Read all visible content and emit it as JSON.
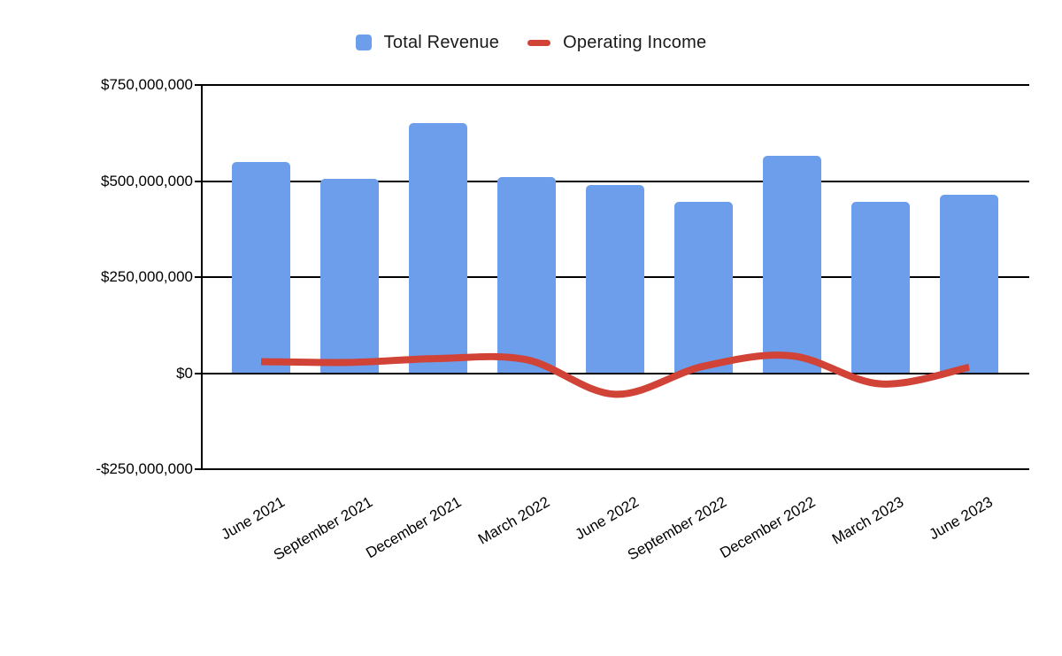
{
  "legend": [
    {
      "label": "Total Revenue",
      "swatch": "blue-square-swatch",
      "color": "#6d9eeb"
    },
    {
      "label": "Operating Income",
      "swatch": "red-dash-swatch",
      "color": "#d04336"
    }
  ],
  "chart_data": {
    "type": "bar",
    "subtype": "combo-bar-line",
    "categories": [
      "June 2021",
      "September 2021",
      "December 2021",
      "March 2022",
      "June 2022",
      "September 2022",
      "December 2022",
      "March 2023",
      "June 2023"
    ],
    "series": [
      {
        "name": "Total Revenue",
        "type": "bar",
        "color": "#6d9eeb",
        "values": [
          550000000,
          505000000,
          650000000,
          510000000,
          490000000,
          445000000,
          565000000,
          445000000,
          465000000
        ]
      },
      {
        "name": "Operating Income",
        "type": "line",
        "smooth": true,
        "color": "#d04336",
        "values": [
          30000000,
          28000000,
          38000000,
          35000000,
          -55000000,
          18000000,
          45000000,
          -28000000,
          15000000
        ]
      }
    ],
    "title": "",
    "xlabel": "",
    "ylabel": "",
    "ylim": [
      -250000000,
      750000000
    ],
    "yticks": [
      {
        "value": 750000000,
        "label": "$750,000,000"
      },
      {
        "value": 500000000,
        "label": "$500,000,000"
      },
      {
        "value": 250000000,
        "label": "$250,000,000"
      },
      {
        "value": 0,
        "label": "$0"
      },
      {
        "value": -250000000,
        "label": "-$250,000,000"
      }
    ],
    "grid": true,
    "legend_position": "top",
    "x_tick_rotation_deg": -30
  }
}
